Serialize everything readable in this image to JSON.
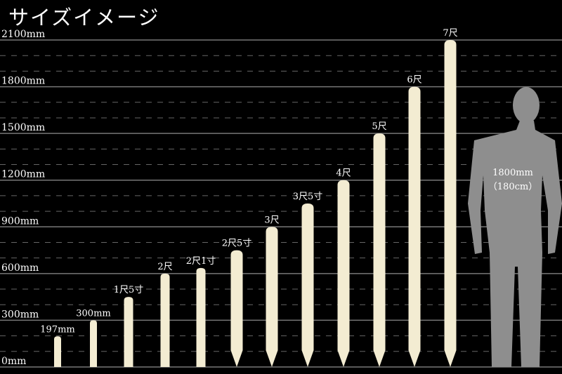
{
  "title": "サイズイメージ",
  "chart_data": {
    "type": "bar",
    "title": "サイズイメージ",
    "unit": "mm",
    "ylim": [
      0,
      2100
    ],
    "y_ticks": [
      {
        "value": 0,
        "label": "0mm"
      },
      {
        "value": 300,
        "label": "300mm"
      },
      {
        "value": 600,
        "label": "600mm"
      },
      {
        "value": 900,
        "label": "900mm"
      },
      {
        "value": 1200,
        "label": "1200mm"
      },
      {
        "value": 1500,
        "label": "1500mm"
      },
      {
        "value": 1800,
        "label": "1800mm"
      },
      {
        "value": 2100,
        "label": "2100mm"
      }
    ],
    "minor_grid_step": 100,
    "grid": true,
    "categories": [
      "197mm",
      "300mm",
      "1尺5寸",
      "2尺",
      "2尺1寸",
      "2尺5寸",
      "3尺",
      "3尺5寸",
      "4尺",
      "5尺",
      "6尺",
      "7尺"
    ],
    "values": [
      197,
      300,
      450,
      600,
      636,
      750,
      900,
      1050,
      1200,
      1500,
      1800,
      2100
    ],
    "pointed": [
      false,
      false,
      false,
      false,
      false,
      true,
      true,
      true,
      true,
      true,
      true,
      true
    ],
    "bar_color": "#f3ecd2",
    "reference": {
      "value": 1800,
      "label_line1": "1800mm",
      "label_line2": "（180cm）",
      "color": "#8e8e8e"
    }
  }
}
